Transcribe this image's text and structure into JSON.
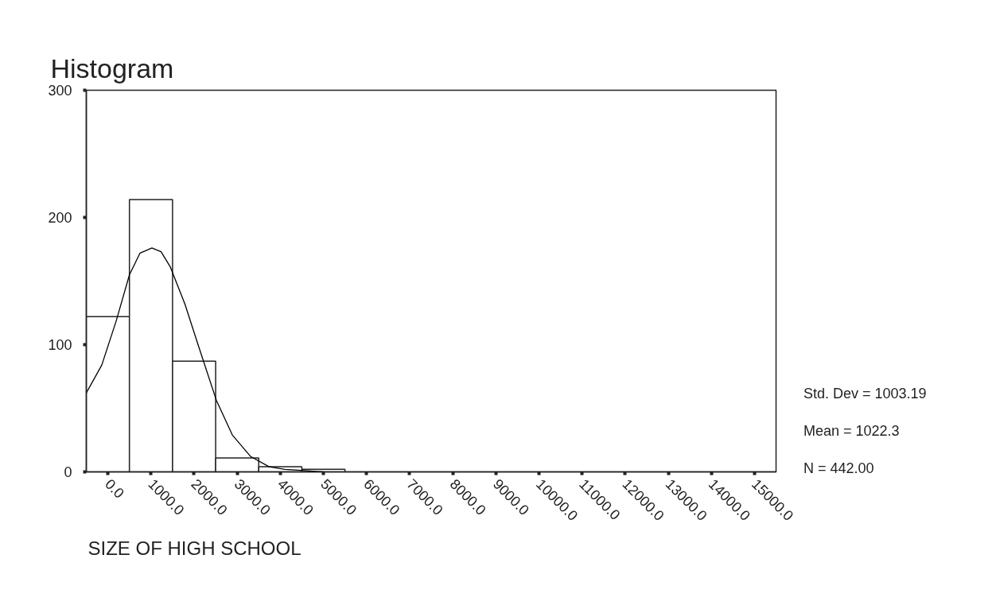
{
  "chart_data": {
    "type": "histogram",
    "title": "Histogram",
    "xlabel": "SIZE OF HIGH SCHOOL",
    "bins": [
      -500,
      500,
      1500,
      2500,
      3500,
      4500,
      5500
    ],
    "values": [
      122,
      214,
      87,
      11,
      4,
      2
    ],
    "color": "#ffffff",
    "series": [
      {
        "type": "line",
        "color": "#000000",
        "x": [
          -500,
          -141,
          196,
          501,
          746,
          1022,
          1235,
          1450,
          1786,
          2092,
          2520,
          2887,
          3315,
          3743,
          4110,
          5000
        ],
        "values": [
          62,
          84,
          119,
          155,
          172,
          176,
          173,
          161,
          132,
          100,
          56,
          29,
          12,
          4,
          2,
          0
        ]
      }
    ],
    "xlim": [
      -500,
      15500
    ],
    "ylim": [
      0,
      300
    ],
    "xticks": [
      {
        "value": 0,
        "label": "0.0"
      },
      {
        "value": 1000,
        "label": "1000.0"
      },
      {
        "value": 2000,
        "label": "2000.0"
      },
      {
        "value": 3000,
        "label": "3000.0"
      },
      {
        "value": 4000,
        "label": "4000.0"
      },
      {
        "value": 5000,
        "label": "5000.0"
      },
      {
        "value": 6000,
        "label": "6000.0"
      },
      {
        "value": 7000,
        "label": "7000.0"
      },
      {
        "value": 8000,
        "label": "8000.0"
      },
      {
        "value": 9000,
        "label": "9000.0"
      },
      {
        "value": 10000,
        "label": "10000.0"
      },
      {
        "value": 11000,
        "label": "11000.0"
      },
      {
        "value": 12000,
        "label": "12000.0"
      },
      {
        "value": 13000,
        "label": "13000.0"
      },
      {
        "value": 14000,
        "label": "14000.0"
      },
      {
        "value": 15000,
        "label": "15000.0"
      }
    ],
    "yticks": [
      0,
      100,
      200,
      300
    ],
    "grid": false,
    "annotations": [
      "Std. Dev = 1003.19",
      "Mean = 1022.3",
      "N = 442.00"
    ]
  }
}
